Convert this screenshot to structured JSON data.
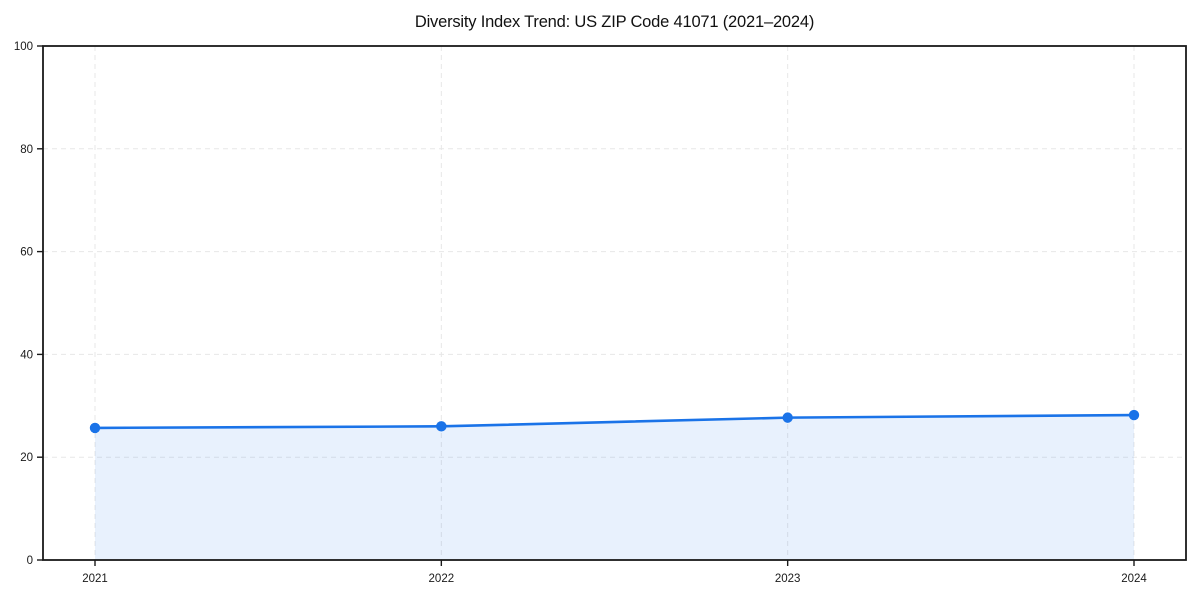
{
  "page": {
    "background": "#ffffff"
  },
  "chart_data": {
    "type": "area",
    "title": "Diversity Index Trend: US ZIP Code 41071 (2021–2024)",
    "categories": [
      "2021",
      "2022",
      "2023",
      "2024"
    ],
    "series": [
      {
        "name": "Diversity Index",
        "values": [
          25.7,
          26.0,
          27.7,
          28.2
        ]
      }
    ],
    "xlabel": "",
    "ylabel": "",
    "ylim": [
      0,
      100
    ],
    "yticks": [
      0,
      20,
      40,
      60,
      80,
      100
    ],
    "grid": true,
    "grid_style": "dashed",
    "legend_position": "none",
    "line_color": "#1a73e8",
    "fill_color": "rgba(26,115,232,0.10)",
    "grid_color": "#e7e7e7",
    "axis_color": "#1a1a1a",
    "marker": "circle"
  }
}
